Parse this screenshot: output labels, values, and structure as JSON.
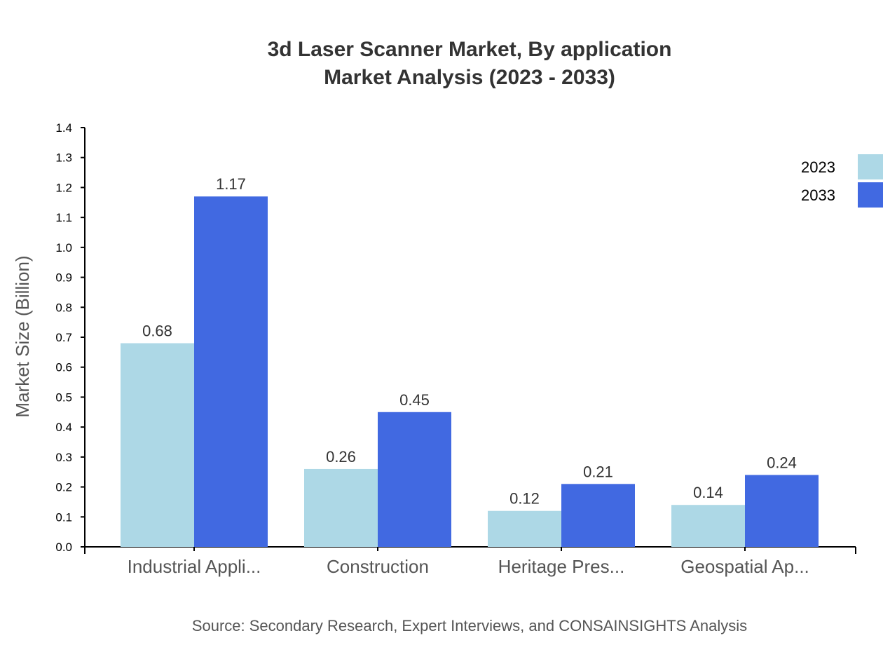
{
  "chart_data": {
    "type": "bar",
    "title": "3d Laser Scanner Market, By application",
    "subtitle": "Market Analysis (2023 - 2033)",
    "xlabel": "",
    "ylabel": "Market Size (Billion)",
    "ylim": [
      0,
      1.4
    ],
    "yticks": [
      "0.0",
      "0.1",
      "0.2",
      "0.3",
      "0.4",
      "0.5",
      "0.6",
      "0.7",
      "0.8",
      "0.9",
      "1.0",
      "1.1",
      "1.2",
      "1.3",
      "1.4"
    ],
    "categories": [
      "Industrial Appli...",
      "Construction",
      "Heritage Pres...",
      "Geospatial Ap..."
    ],
    "series": [
      {
        "name": "2023",
        "color": "#add8e6",
        "values": [
          0.68,
          0.26,
          0.12,
          0.14
        ]
      },
      {
        "name": "2033",
        "color": "#4169e1",
        "values": [
          1.17,
          0.45,
          0.21,
          0.24
        ]
      }
    ],
    "legend": "top-right",
    "grid": false,
    "source": "Source: Secondary Research, Expert Interviews, and CONSAINSIGHTS Analysis"
  }
}
